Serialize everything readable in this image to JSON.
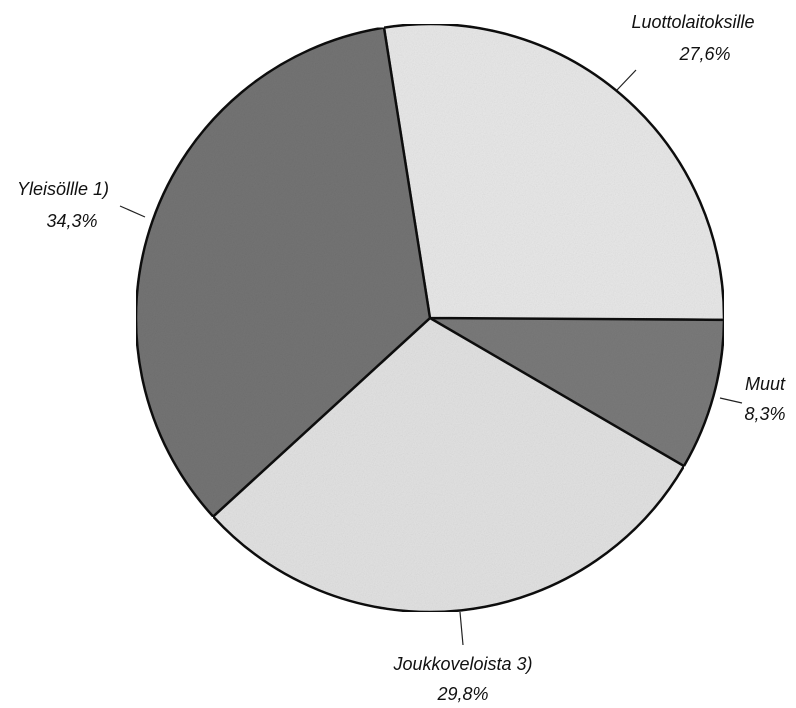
{
  "chart_data": {
    "type": "pie",
    "categories": [
      "Luottolaitoksille",
      "Muut",
      "Joukkoveloista 3)",
      "Yleisöllle 1)"
    ],
    "values": [
      27.6,
      8.3,
      29.8,
      34.3
    ],
    "value_labels": [
      "27,6%",
      "8,3%",
      "29,8%",
      "34,3%"
    ],
    "colors": [
      "#e8e8e8",
      "#7a7a7a",
      "#e2e2e2",
      "#747474"
    ]
  }
}
